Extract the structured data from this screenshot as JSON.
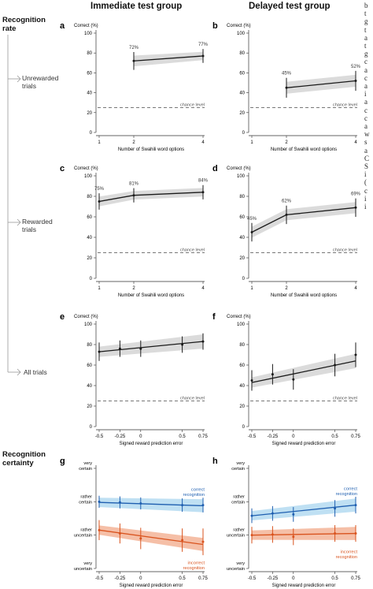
{
  "headers": {
    "immediate": "Immediate test group",
    "delayed": "Delayed test group"
  },
  "left_labels": {
    "recognition_rate_line1": "Recognition",
    "recognition_rate_line2": "rate",
    "unrewarded_line1": "Unrewarded",
    "unrewarded_line2": "trials",
    "rewarded_line1": "Rewarded",
    "rewarded_line2": "trials",
    "all_trials": "All trials",
    "certainty_line1": "Recognition",
    "certainty_line2": "certainty"
  },
  "right_margin_text": [
    "b",
    "t",
    "g",
    "t",
    "a",
    "t",
    "g",
    "c",
    "a",
    "c",
    "a",
    "i",
    "a",
    "c",
    "c",
    "a",
    "w",
    "s",
    "a",
    "C",
    "S",
    "i",
    "(",
    "c",
    "i",
    "i"
  ],
  "colors": {
    "line": "#1a1a1a",
    "band": "#cfcfcf",
    "chance": "#777777",
    "correct": "#1f5fb0",
    "correct_band": "#a9d6ef",
    "incorrect": "#d9531e",
    "incorrect_band": "#f2a98a"
  },
  "chart_data": [
    {
      "panel": "a",
      "type": "line",
      "ylabel": "Correct (%)",
      "xlabel": "Number of Swahili word options",
      "xticks": [
        "1",
        "2",
        "4"
      ],
      "yticks": [
        "0",
        "20",
        "40",
        "60",
        "80",
        "100"
      ],
      "ylim": [
        0,
        100
      ],
      "chance_label": "chance level",
      "chance": 25,
      "points": [
        {
          "x": 2,
          "y": 72,
          "err": 9,
          "label": "72%"
        },
        {
          "x": 4,
          "y": 77,
          "err": 7,
          "label": "77%"
        }
      ]
    },
    {
      "panel": "b",
      "type": "line",
      "ylabel": "Correct (%)",
      "xlabel": "Number of Swahili word options",
      "xticks": [
        "1",
        "2",
        "4"
      ],
      "yticks": [
        "0",
        "20",
        "40",
        "60",
        "80",
        "100"
      ],
      "ylim": [
        0,
        100
      ],
      "chance_label": "chance level",
      "chance": 25,
      "points": [
        {
          "x": 2,
          "y": 45,
          "err": 10,
          "label": "45%"
        },
        {
          "x": 4,
          "y": 52,
          "err": 10,
          "label": "52%"
        }
      ]
    },
    {
      "panel": "c",
      "type": "line",
      "ylabel": "Correct (%)",
      "xlabel": "Number of Swahili word options",
      "xticks": [
        "1",
        "2",
        "4"
      ],
      "yticks": [
        "0",
        "20",
        "40",
        "60",
        "80",
        "100"
      ],
      "ylim": [
        0,
        100
      ],
      "chance_label": "chance level",
      "chance": 25,
      "points": [
        {
          "x": 1,
          "y": 75,
          "err": 8,
          "label": "75%"
        },
        {
          "x": 2,
          "y": 81,
          "err": 7,
          "label": "81%"
        },
        {
          "x": 4,
          "y": 84,
          "err": 7,
          "label": "84%"
        }
      ]
    },
    {
      "panel": "d",
      "type": "line",
      "ylabel": "Correct (%)",
      "xlabel": "Number of Swahili word options",
      "xticks": [
        "1",
        "2",
        "4"
      ],
      "yticks": [
        "0",
        "20",
        "40",
        "60",
        "80",
        "100"
      ],
      "ylim": [
        0,
        100
      ],
      "chance_label": "chance level",
      "chance": 25,
      "points": [
        {
          "x": 1,
          "y": 45,
          "err": 9,
          "label": "45%"
        },
        {
          "x": 2,
          "y": 62,
          "err": 9,
          "label": "62%"
        },
        {
          "x": 4,
          "y": 69,
          "err": 9,
          "label": "69%"
        }
      ]
    },
    {
      "panel": "e",
      "type": "line",
      "ylabel": "Correct (%)",
      "xlabel": "Signed reward prediction error",
      "xticks": [
        "-0.5",
        "-0.25",
        "0",
        "0.5",
        "0.75"
      ],
      "yticks": [
        "0",
        "20",
        "40",
        "60",
        "80",
        "100"
      ],
      "ylim": [
        0,
        100
      ],
      "chance_label": "chance level",
      "chance": 25,
      "line": [
        [
          -0.5,
          73
        ],
        [
          0.75,
          83
        ]
      ],
      "points": [
        {
          "x": -0.5,
          "y": 73,
          "err": 9
        },
        {
          "x": -0.25,
          "y": 76,
          "err": 8
        },
        {
          "x": 0,
          "y": 76,
          "err": 8
        },
        {
          "x": 0.5,
          "y": 80,
          "err": 8
        },
        {
          "x": 0.75,
          "y": 83,
          "err": 8
        }
      ]
    },
    {
      "panel": "f",
      "type": "line",
      "ylabel": "Correct (%)",
      "xlabel": "Signed reward prediction error",
      "xticks": [
        "-0.5",
        "-0.25",
        "0",
        "0.5",
        "0.75"
      ],
      "yticks": [
        "0",
        "20",
        "40",
        "60",
        "80",
        "100"
      ],
      "ylim": [
        0,
        100
      ],
      "chance_label": "chance level",
      "chance": 25,
      "line": [
        [
          -0.5,
          43
        ],
        [
          0.75,
          64
        ]
      ],
      "points": [
        {
          "x": -0.5,
          "y": 45,
          "err": 10
        },
        {
          "x": -0.25,
          "y": 51,
          "err": 10
        },
        {
          "x": 0,
          "y": 46,
          "err": 10
        },
        {
          "x": 0.5,
          "y": 60,
          "err": 11
        },
        {
          "x": 0.75,
          "y": 70,
          "err": 12
        }
      ]
    },
    {
      "panel": "g",
      "type": "line",
      "xlabel": "Signed reward prediction error",
      "xticks": [
        "-0.5",
        "-0.25",
        "0",
        "0.5",
        "0.75"
      ],
      "ytick_labels": [
        {
          "v": 1,
          "text": "very\nuncertain"
        },
        {
          "v": 2,
          "text": "rather\nuncertain"
        },
        {
          "v": 3,
          "text": "rather\ncertain"
        },
        {
          "v": 4,
          "text": "very\ncertain"
        }
      ],
      "ylim": [
        1,
        4
      ],
      "series": [
        {
          "name": "correct\nrecognition",
          "color": "correct",
          "line": [
            [
              -0.5,
              2.98
            ],
            [
              0.75,
              2.88
            ]
          ],
          "points": [
            {
              "x": -0.5,
              "y": 3.0,
              "err": 0.18
            },
            {
              "x": -0.25,
              "y": 2.98,
              "err": 0.18
            },
            {
              "x": 0,
              "y": 2.95,
              "err": 0.18
            },
            {
              "x": 0.5,
              "y": 2.9,
              "err": 0.2
            },
            {
              "x": 0.75,
              "y": 2.9,
              "err": 0.22
            }
          ]
        },
        {
          "name": "incorrect\nrecognition",
          "color": "incorrect",
          "line": [
            [
              -0.5,
              2.15
            ],
            [
              0.75,
              1.72
            ]
          ],
          "points": [
            {
              "x": -0.5,
              "y": 2.15,
              "err": 0.3
            },
            {
              "x": -0.25,
              "y": 2.05,
              "err": 0.3
            },
            {
              "x": 0,
              "y": 1.9,
              "err": 0.32
            },
            {
              "x": 0.5,
              "y": 1.85,
              "err": 0.35
            },
            {
              "x": 0.75,
              "y": 1.8,
              "err": 0.4
            }
          ]
        }
      ]
    },
    {
      "panel": "h",
      "type": "line",
      "xlabel": "Signed reward prediction error",
      "xticks": [
        "-0.5",
        "-0.25",
        "0",
        "0.5",
        "0.75"
      ],
      "ytick_labels": [
        {
          "v": 1,
          "text": "very\nuncertain"
        },
        {
          "v": 2,
          "text": "rather\nuncertain"
        },
        {
          "v": 3,
          "text": "rather\ncertain"
        },
        {
          "v": 4,
          "text": "very\ncertain"
        }
      ],
      "ylim": [
        1,
        4
      ],
      "series": [
        {
          "name": "correct\nrecognition",
          "color": "correct",
          "line": [
            [
              -0.5,
              2.58
            ],
            [
              0.75,
              2.9
            ]
          ],
          "points": [
            {
              "x": -0.5,
              "y": 2.58,
              "err": 0.22
            },
            {
              "x": -0.25,
              "y": 2.65,
              "err": 0.22
            },
            {
              "x": 0,
              "y": 2.62,
              "err": 0.22
            },
            {
              "x": 0.5,
              "y": 2.8,
              "err": 0.25
            },
            {
              "x": 0.75,
              "y": 2.9,
              "err": 0.25
            }
          ]
        },
        {
          "name": "incorrect\nrecognition",
          "color": "incorrect",
          "line": [
            [
              -0.5,
              2.0
            ],
            [
              0.75,
              2.05
            ]
          ],
          "points": [
            {
              "x": -0.5,
              "y": 2.0,
              "err": 0.25
            },
            {
              "x": -0.25,
              "y": 2.02,
              "err": 0.25
            },
            {
              "x": 0,
              "y": 1.95,
              "err": 0.25
            },
            {
              "x": 0.5,
              "y": 2.05,
              "err": 0.25
            },
            {
              "x": 0.75,
              "y": 2.05,
              "err": 0.25
            }
          ]
        }
      ]
    }
  ]
}
